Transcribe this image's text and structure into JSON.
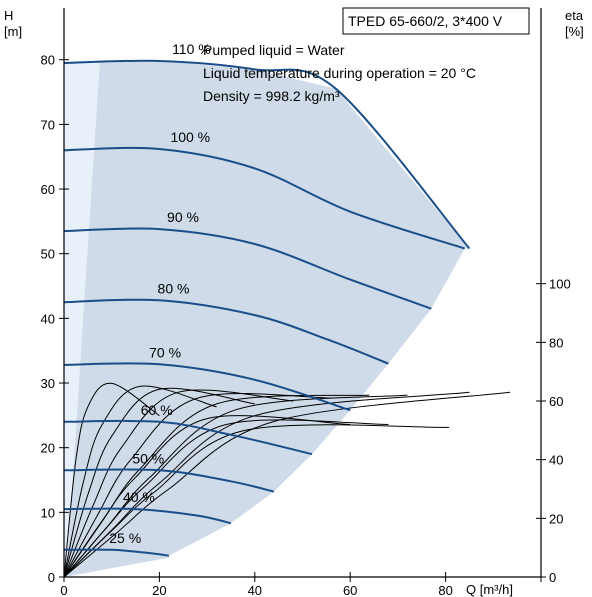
{
  "chart_data": {
    "type": "line",
    "title": "TPED 65-660/2, 3*400 V",
    "annotations": [
      "Pumped liquid = Water",
      "Liquid temperature during operation = 20 °C",
      "Density = 998.2 kg/m³"
    ],
    "y_left_label": [
      "H",
      "[m]"
    ],
    "y_right_label": [
      "eta",
      "[%]"
    ],
    "xlabel": "Q [m³/h]",
    "xlim": [
      0,
      100
    ],
    "ylim_left": [
      0,
      88
    ],
    "ylim_right": [
      0,
      100
    ],
    "x_ticks": [
      "0",
      "20",
      "40",
      "60",
      "80"
    ],
    "y_left_ticks": [
      "0",
      "10",
      "20",
      "30",
      "40",
      "50",
      "60",
      "70",
      "80"
    ],
    "y_right_ticks": [
      "0",
      "20",
      "40",
      "60",
      "80",
      "100"
    ],
    "grid": false,
    "colors": {
      "curve": "#1a4e8a",
      "envelope": "#cfdbe8",
      "envelope_low_flow": "#e8f1fa",
      "efficiency": "#000000"
    },
    "head_curves": [
      {
        "speed": "110 %",
        "speed_fraction": 1.1,
        "points": [
          [
            0,
            79.5
          ],
          [
            20,
            79.8
          ],
          [
            40,
            78.5
          ],
          [
            57,
            75.5
          ],
          [
            85,
            50.8
          ]
        ]
      },
      {
        "speed": "100 %",
        "speed_fraction": 1.0,
        "points": [
          [
            0,
            66
          ],
          [
            20,
            66.2
          ],
          [
            40,
            63.2
          ],
          [
            60,
            56.5
          ],
          [
            84,
            50.8
          ]
        ]
      },
      {
        "speed": "90 %",
        "speed_fraction": 0.9,
        "points": [
          [
            0,
            53.5
          ],
          [
            20,
            53.8
          ],
          [
            40,
            51.5
          ],
          [
            60,
            46
          ],
          [
            77,
            41.5
          ]
        ]
      },
      {
        "speed": "80 %",
        "speed_fraction": 0.8,
        "points": [
          [
            0,
            42.5
          ],
          [
            20,
            42.8
          ],
          [
            40,
            40.5
          ],
          [
            55,
            36.8
          ],
          [
            68,
            33
          ]
        ]
      },
      {
        "speed": "70 %",
        "speed_fraction": 0.7,
        "points": [
          [
            0,
            32.8
          ],
          [
            20,
            32.9
          ],
          [
            40,
            30.5
          ],
          [
            60,
            25.8
          ]
        ]
      },
      {
        "speed": "60 %",
        "speed_fraction": 0.6,
        "points": [
          [
            0,
            24
          ],
          [
            20,
            24
          ],
          [
            35,
            22
          ],
          [
            52,
            19
          ]
        ]
      },
      {
        "speed": "50 %",
        "speed_fraction": 0.5,
        "points": [
          [
            0,
            16.5
          ],
          [
            20,
            16.5
          ],
          [
            35,
            14.8
          ],
          [
            44,
            13.2
          ]
        ]
      },
      {
        "speed": "40 %",
        "speed_fraction": 0.4,
        "points": [
          [
            0,
            10.5
          ],
          [
            15,
            10.5
          ],
          [
            28,
            9.5
          ],
          [
            35,
            8.3
          ]
        ]
      },
      {
        "speed": "25 %",
        "speed_fraction": 0.25,
        "points": [
          [
            0,
            4.2
          ],
          [
            10,
            4.2
          ],
          [
            18,
            3.7
          ],
          [
            22,
            3.3
          ]
        ]
      }
    ],
    "efficiency_curves": [
      {
        "speed_fraction": 0.25,
        "points": [
          [
            0,
            0
          ],
          [
            10,
            40
          ],
          [
            20,
            58
          ],
          [
            40,
            66
          ],
          [
            80,
            55
          ]
        ]
      },
      {
        "speed_fraction": 0.4,
        "points": [
          [
            0,
            0
          ],
          [
            10,
            32
          ],
          [
            20,
            52
          ],
          [
            40,
            65
          ],
          [
            80,
            58
          ]
        ]
      },
      {
        "speed_fraction": 0.5,
        "points": [
          [
            0,
            0
          ],
          [
            10,
            28
          ],
          [
            20,
            48
          ],
          [
            40,
            64
          ],
          [
            80,
            59
          ]
        ]
      },
      {
        "speed_fraction": 0.6,
        "points": [
          [
            0,
            0
          ],
          [
            10,
            24
          ],
          [
            20,
            44
          ],
          [
            40,
            63
          ],
          [
            80,
            60
          ]
        ]
      },
      {
        "speed_fraction": 0.7,
        "points": [
          [
            0,
            0
          ],
          [
            10,
            21
          ],
          [
            20,
            40
          ],
          [
            40,
            61
          ],
          [
            80,
            61
          ]
        ]
      },
      {
        "speed_fraction": 0.8,
        "points": [
          [
            0,
            0
          ],
          [
            10,
            19
          ],
          [
            20,
            37
          ],
          [
            40,
            59
          ],
          [
            80,
            62
          ]
        ]
      },
      {
        "speed_fraction": 0.9,
        "points": [
          [
            0,
            0
          ],
          [
            10,
            17
          ],
          [
            20,
            34
          ],
          [
            40,
            57
          ],
          [
            80,
            62
          ]
        ]
      },
      {
        "speed_fraction": 1.0,
        "points": [
          [
            0,
            0
          ],
          [
            10,
            16
          ],
          [
            20,
            32
          ],
          [
            40,
            55
          ],
          [
            85,
            63
          ]
        ]
      },
      {
        "speed_fraction": 1.1,
        "points": [
          [
            0,
            0
          ],
          [
            10,
            15
          ],
          [
            20,
            30
          ],
          [
            40,
            53
          ],
          [
            85,
            63
          ]
        ]
      },
      {
        "speed_fraction": 0.75,
        "points": [
          [
            0,
            0
          ],
          [
            10,
            18
          ],
          [
            20,
            34
          ],
          [
            40,
            54
          ],
          [
            80,
            52
          ]
        ]
      },
      {
        "speed_fraction": 0.85,
        "points": [
          [
            0,
            0
          ],
          [
            10,
            16
          ],
          [
            20,
            31
          ],
          [
            40,
            52
          ],
          [
            80,
            52
          ]
        ]
      },
      {
        "speed_fraction": 0.95,
        "points": [
          [
            0,
            0
          ],
          [
            10,
            15
          ],
          [
            20,
            29
          ],
          [
            40,
            50
          ],
          [
            85,
            51
          ]
        ]
      }
    ]
  }
}
